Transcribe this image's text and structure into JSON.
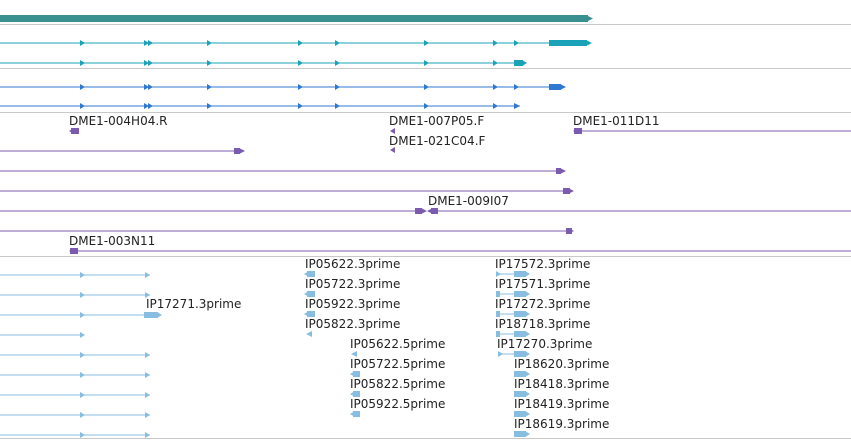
{
  "colors": {
    "divider": "#c8c8c8",
    "gene_summary": "#3a8f8f",
    "transcript_teal": "#1aa3b8",
    "transcript_blue": "#2f78d2",
    "est_purple": "#7b5bb0",
    "mrna_light_blue": "#86bde0",
    "label_text": "#222222"
  },
  "icons": {
    "forward_arrow": "triangle-right",
    "reverse_arrow": "triangle-left"
  },
  "est_labels": [
    "DME1-004H04.R",
    "DME1-007P05.F",
    "DME1-021C04.F",
    "DME1-011D11",
    "DME1-009I07",
    "DME1-003N11"
  ],
  "mrna_labels": [
    "IP17271.3prime",
    "IP05622.3prime",
    "IP05722.3prime",
    "IP05922.3prime",
    "IP05822.3prime",
    "IP05622.5prime",
    "IP05722.5prime",
    "IP05822.5prime",
    "IP05922.5prime",
    "IP17572.3prime",
    "IP17571.3prime",
    "IP17272.3prime",
    "IP18718.3prime",
    "IP17270.3prime",
    "IP18620.3prime",
    "IP18418.3prime",
    "IP18419.3prime",
    "IP18619.3prime"
  ]
}
